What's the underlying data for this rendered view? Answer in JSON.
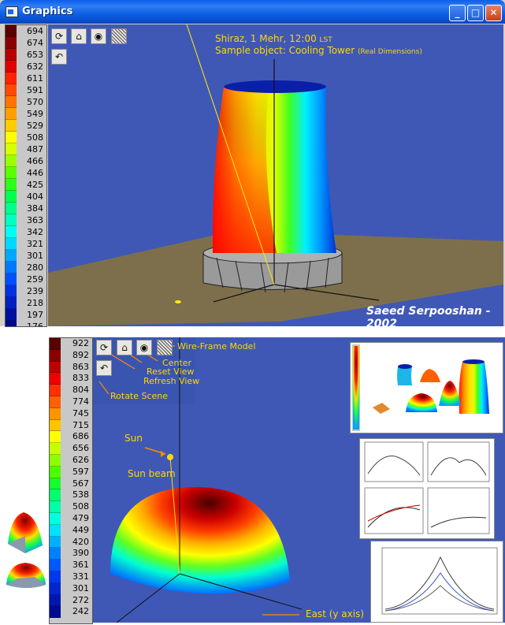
{
  "window": {
    "title": "Graphics",
    "icon": "app-window-icon",
    "controls": [
      "minimize-icon",
      "maximize-icon",
      "close-icon"
    ]
  },
  "colorbar_top": {
    "values": [
      "694",
      "674",
      "653",
      "632",
      "611",
      "591",
      "570",
      "549",
      "529",
      "508",
      "487",
      "466",
      "446",
      "425",
      "404",
      "384",
      "363",
      "342",
      "321",
      "301",
      "280",
      "259",
      "239",
      "218",
      "197",
      "176"
    ],
    "colors": [
      "#5a0000",
      "#8a0000",
      "#b50000",
      "#de0000",
      "#ff2200",
      "#ff4a00",
      "#ff7400",
      "#ffa000",
      "#ffcc00",
      "#ffff00",
      "#d6ff00",
      "#9cff00",
      "#5cff00",
      "#2dff1d",
      "#00ff4f",
      "#00ff8a",
      "#00ffc0",
      "#00fff2",
      "#00d8ff",
      "#00a8ff",
      "#0078ff",
      "#0050ff",
      "#0032e0",
      "#0020c0",
      "#0010a0",
      "#000888"
    ]
  },
  "colorbar_bottom": {
    "values": [
      "922",
      "892",
      "863",
      "833",
      "804",
      "774",
      "745",
      "715",
      "686",
      "656",
      "626",
      "597",
      "567",
      "538",
      "508",
      "479",
      "449",
      "420",
      "390",
      "361",
      "331",
      "301",
      "272",
      "242"
    ],
    "colors": [
      "#5a0000",
      "#8a0000",
      "#c00000",
      "#ee0000",
      "#ff3000",
      "#ff6000",
      "#ff9400",
      "#ffc400",
      "#ffff00",
      "#c8ff00",
      "#8cff00",
      "#4cff00",
      "#14ff30",
      "#00ff6c",
      "#00ffa8",
      "#00ffe0",
      "#00e0ff",
      "#00b0ff",
      "#0080ff",
      "#0058ff",
      "#0038f0",
      "#0026d0",
      "#0016b0",
      "#000a90"
    ]
  },
  "scene_top": {
    "line1": "Shiraz, 1 Mehr, 12:00",
    "line1_suffix": "LST",
    "line2": "Sample object: Cooling Tower",
    "line2_suffix": "(Real Dimensions)",
    "credit": "Saeed Serpooshan - 2002"
  },
  "toolbar_icons": {
    "refresh": "refresh-view-icon",
    "home": "reset-view-icon",
    "center": "center-icon",
    "wireframe": "wireframe-icon",
    "rotate": "rotate-scene-icon"
  },
  "scene_bottom": {
    "labels": {
      "wireframe": "Wire-Frame Model",
      "center": "Center",
      "reset": "Reset View",
      "refresh": "Refresh View",
      "rotate": "Rotate Scene",
      "sun": "Sun",
      "sun_beam": "Sun beam",
      "east": "East (y axis)"
    }
  },
  "colors": {
    "scene_bg": "#3f58b6",
    "ground": "#7e6f4c",
    "annotation": "#ffd800",
    "title_blue": "#0a5ee9"
  }
}
